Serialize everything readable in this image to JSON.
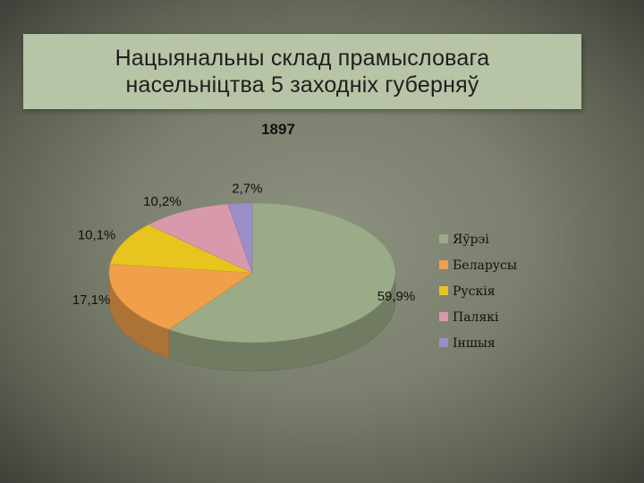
{
  "slide": {
    "title_line1": "Нацыянальны склад прамысловага",
    "title_line2": "насельніцтва 5 заходніх губерняў"
  },
  "chart_data": {
    "type": "pie",
    "title": "1897",
    "categories": [
      "Яўрэі",
      "Беларусы",
      "Рускія",
      "Палякі",
      "Іншыя"
    ],
    "values": [
      59.9,
      17.1,
      10.1,
      10.2,
      2.7
    ],
    "labels": [
      "59,9%",
      "17,1%",
      "10,1%",
      "10,2%",
      "2,7%"
    ],
    "colors": [
      "#9bab88",
      "#f0a04b",
      "#e8c41e",
      "#d89aaa",
      "#9b8fc9"
    ],
    "legend_position": "right",
    "style": "3d"
  }
}
